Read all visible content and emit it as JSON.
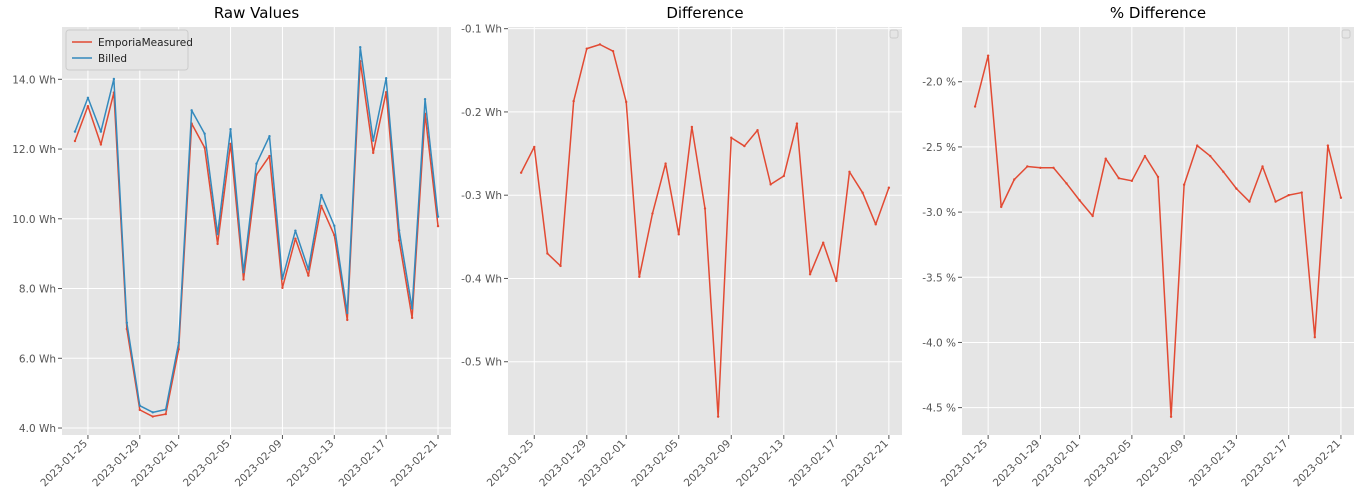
{
  "chart_data": [
    {
      "type": "line",
      "title": "Raw Values",
      "xlabel": "",
      "ylabel": "",
      "x_ticks": [
        "2023-01-25",
        "2023-01-29",
        "2023-02-01",
        "2023-02-05",
        "2023-02-09",
        "2023-02-13",
        "2023-02-17",
        "2023-02-21"
      ],
      "y_ticks": [
        "4.0 Wh",
        "6.0 Wh",
        "8.0 Wh",
        "10.0 Wh",
        "12.0 Wh",
        "14.0 Wh"
      ],
      "y_tick_values": [
        4,
        6,
        8,
        10,
        12,
        14
      ],
      "ylim": [
        3.8,
        15.5
      ],
      "xlim": [
        "2023-01-23",
        "2023-02-22"
      ],
      "grid": true,
      "legend": "top-left",
      "x": [
        "2023-01-24",
        "2023-01-25",
        "2023-01-26",
        "2023-01-27",
        "2023-01-28",
        "2023-01-29",
        "2023-01-30",
        "2023-01-31",
        "2023-02-01",
        "2023-02-02",
        "2023-02-03",
        "2023-02-04",
        "2023-02-05",
        "2023-02-06",
        "2023-02-07",
        "2023-02-08",
        "2023-02-09",
        "2023-02-10",
        "2023-02-11",
        "2023-02-12",
        "2023-02-13",
        "2023-02-14",
        "2023-02-15",
        "2023-02-16",
        "2023-02-17",
        "2023-02-18",
        "2023-02-19",
        "2023-02-20",
        "2023-02-21"
      ],
      "series": [
        {
          "name": "EmporiaMeasured",
          "color": "#E24A33",
          "values": [
            12.23,
            13.23,
            12.13,
            13.62,
            6.84,
            4.52,
            4.33,
            4.4,
            6.26,
            12.73,
            12.04,
            9.28,
            12.15,
            8.26,
            11.26,
            11.8,
            8.02,
            9.43,
            8.37,
            10.37,
            9.53,
            7.1,
            14.52,
            11.89,
            13.63,
            9.38,
            7.16,
            13.01,
            9.79
          ]
        },
        {
          "name": "Billed",
          "color": "#348ABD",
          "values": [
            12.5,
            13.47,
            12.5,
            14.01,
            7.02,
            4.64,
            4.45,
            4.53,
            6.45,
            13.11,
            12.44,
            9.56,
            12.57,
            8.47,
            11.58,
            12.37,
            8.28,
            9.66,
            8.55,
            10.68,
            9.8,
            7.3,
            14.92,
            12.24,
            14.03,
            9.67,
            7.43,
            13.43,
            10.06
          ]
        }
      ]
    },
    {
      "type": "line",
      "title": "Difference",
      "xlabel": "",
      "ylabel": "",
      "x_ticks": [
        "2023-01-25",
        "2023-01-29",
        "2023-02-01",
        "2023-02-05",
        "2023-02-09",
        "2023-02-13",
        "2023-02-17",
        "2023-02-21"
      ],
      "y_ticks": [
        "-0.5 Wh",
        "-0.4 Wh",
        "-0.3 Wh",
        "-0.2 Wh",
        "-0.1 Wh"
      ],
      "y_tick_values": [
        -0.5,
        -0.4,
        -0.3,
        -0.2,
        -0.1
      ],
      "ylim": [
        -0.588,
        -0.098
      ],
      "xlim": [
        "2023-01-23",
        "2023-02-22"
      ],
      "grid": true,
      "legend": "top-right",
      "x": [
        "2023-01-24",
        "2023-01-25",
        "2023-01-26",
        "2023-01-27",
        "2023-01-28",
        "2023-01-29",
        "2023-01-30",
        "2023-01-31",
        "2023-02-01",
        "2023-02-02",
        "2023-02-03",
        "2023-02-04",
        "2023-02-05",
        "2023-02-06",
        "2023-02-07",
        "2023-02-08",
        "2023-02-09",
        "2023-02-10",
        "2023-02-11",
        "2023-02-12",
        "2023-02-13",
        "2023-02-14",
        "2023-02-15",
        "2023-02-16",
        "2023-02-17",
        "2023-02-18",
        "2023-02-19",
        "2023-02-20",
        "2023-02-21"
      ],
      "series": [
        {
          "color": "#E24A33",
          "values": [
            -0.273,
            -0.242,
            -0.37,
            -0.385,
            -0.187,
            -0.124,
            -0.119,
            -0.127,
            -0.188,
            -0.398,
            -0.322,
            -0.262,
            -0.347,
            -0.218,
            -0.316,
            -0.566,
            -0.231,
            -0.241,
            -0.222,
            -0.287,
            -0.277,
            -0.214,
            -0.395,
            -0.357,
            -0.403,
            -0.272,
            -0.297,
            -0.335,
            -0.291
          ]
        }
      ]
    },
    {
      "type": "line",
      "title": "% Difference",
      "xlabel": "",
      "ylabel": "",
      "x_ticks": [
        "2023-01-25",
        "2023-01-29",
        "2023-02-01",
        "2023-02-05",
        "2023-02-09",
        "2023-02-13",
        "2023-02-17",
        "2023-02-21"
      ],
      "y_ticks": [
        "-4.5 %",
        "-4.0 %",
        "-3.5 %",
        "-3.0 %",
        "-2.5 %",
        "-2.0 %"
      ],
      "y_tick_values": [
        -4.5,
        -4.0,
        -3.5,
        -3.0,
        -2.5,
        -2.0
      ],
      "ylim": [
        -4.71,
        -1.58
      ],
      "xlim": [
        "2023-01-23",
        "2023-02-22"
      ],
      "grid": true,
      "legend": "top-right",
      "x": [
        "2023-01-24",
        "2023-01-25",
        "2023-01-26",
        "2023-01-27",
        "2023-01-28",
        "2023-01-29",
        "2023-01-30",
        "2023-01-31",
        "2023-02-01",
        "2023-02-02",
        "2023-02-03",
        "2023-02-04",
        "2023-02-05",
        "2023-02-06",
        "2023-02-07",
        "2023-02-08",
        "2023-02-09",
        "2023-02-10",
        "2023-02-11",
        "2023-02-12",
        "2023-02-13",
        "2023-02-14",
        "2023-02-15",
        "2023-02-16",
        "2023-02-17",
        "2023-02-18",
        "2023-02-19",
        "2023-02-20",
        "2023-02-21"
      ],
      "series": [
        {
          "color": "#E24A33",
          "values": [
            -2.19,
            -1.8,
            -2.96,
            -2.75,
            -2.65,
            -2.66,
            -2.66,
            -2.78,
            -2.91,
            -3.03,
            -2.59,
            -2.74,
            -2.76,
            -2.57,
            -2.73,
            -4.57,
            -2.79,
            -2.49,
            -2.57,
            -2.69,
            -2.82,
            -2.92,
            -2.65,
            -2.92,
            -2.87,
            -2.85,
            -3.96,
            -2.49,
            -2.89
          ]
        }
      ]
    }
  ]
}
